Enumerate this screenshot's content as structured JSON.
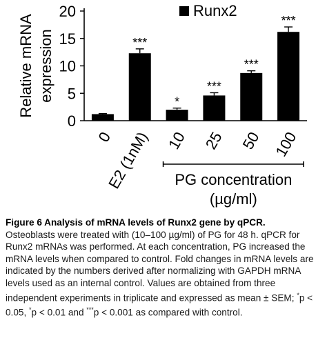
{
  "chart_data": {
    "type": "bar",
    "categories": [
      "0",
      "E2 (1nM)",
      "10",
      "25",
      "50",
      "100"
    ],
    "series": [
      {
        "name": "Runx2",
        "values": [
          1.2,
          12.3,
          2.0,
          4.6,
          8.7,
          16.2
        ],
        "errors": [
          0.1,
          0.8,
          0.3,
          0.5,
          0.4,
          0.9
        ],
        "significance": [
          "",
          "***",
          "*",
          "***",
          "***",
          "***"
        ]
      }
    ],
    "ylabel": "Relative mRNA expression",
    "ylim": [
      0,
      20
    ],
    "yticks": [
      0,
      5,
      10,
      15,
      20
    ],
    "group_label": "PG concentration (µg/ml)",
    "group_categories": [
      "10",
      "25",
      "50",
      "100"
    ],
    "legend_position": "top-right",
    "bar_color": "#000000"
  },
  "caption": {
    "title": "Figure 6 Analysis of mRNA levels of Runx2 gene by qPCR.",
    "text_before": "Osteoblasts were treated with (10–100 µg/ml) of PG for 48 h. qPCR for Runx2 mRNAs was performed. At each concentration, PG increased the mRNA levels when compared to control. Fold changes in mRNA levels are indicated by the numbers derived after normalizing with GAPDH mRNA levels used as an internal control. Values are obtained from three independent experiments in triplicate and expressed as mean ± SEM; ",
    "sup1": "*",
    "p1": "p < 0.05, ",
    "sup2": "*",
    "p2": "p < 0.01 and ",
    "sup3": "***",
    "p3": "p < 0.001 as compared with control."
  }
}
